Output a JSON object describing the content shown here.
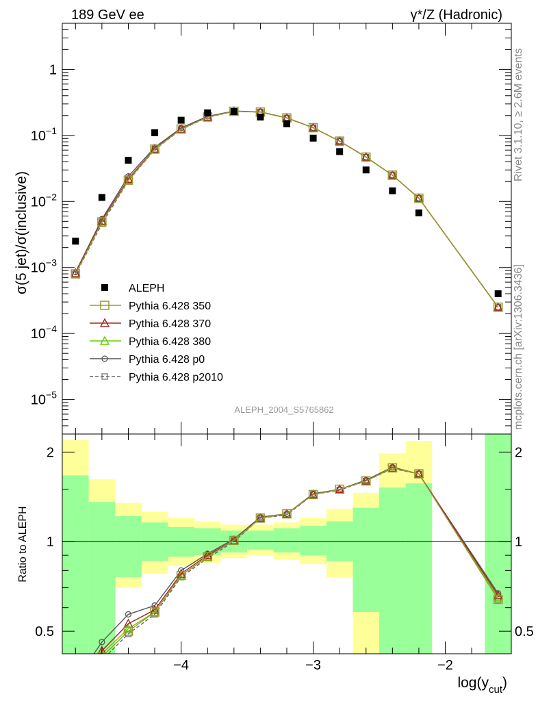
{
  "header": {
    "left": "189 GeV ee",
    "right": "γ*/Z (Hadronic)"
  },
  "side_labels": {
    "rivet": "Rivet 3.1.10, ≥ 2.6M events",
    "mcplots": "mcplots.cern.ch [arXiv:1306.3436]"
  },
  "analysis_id": "ALEPH_2004_S5765862",
  "main_ylabel": "σ(5 jet)/σ(inclusive)",
  "ratio_ylabel": "Ratio to ALEPH",
  "xlabel_base": "log(y",
  "xlabel_sub": "cut",
  "xlabel_close": ")",
  "colors": {
    "aleph": "#000000",
    "p350": "#999933",
    "p370": "#aa2222",
    "p380": "#66cc00",
    "p0": "#555555",
    "p2010": "#666666",
    "band_inner": "#99ff99",
    "band_outer": "#ffff99"
  },
  "chart_data": [
    {
      "type": "scatter",
      "scale": "log",
      "xlim": [
        -4.9,
        -1.5
      ],
      "ylim": [
        3e-06,
        5
      ],
      "y_ticks": [
        "10^-5",
        "10^-4",
        "10^-3",
        "10^-2",
        "10^-1",
        "1"
      ],
      "legend": "middle-left",
      "series": [
        {
          "name": "ALEPH",
          "x": [
            -4.8,
            -4.6,
            -4.4,
            -4.2,
            -4.0,
            -3.8,
            -3.6,
            -3.4,
            -3.2,
            -3.0,
            -2.8,
            -2.6,
            -2.4,
            -2.2,
            -1.6
          ],
          "values": [
            0.0025,
            0.0115,
            0.042,
            0.11,
            0.17,
            0.22,
            0.23,
            0.19,
            0.15,
            0.091,
            0.057,
            0.03,
            0.0145,
            0.0067,
            0.0004
          ]
        },
        {
          "name": "Pythia 6.428 350",
          "x": [
            -4.8,
            -4.6,
            -4.4,
            -4.2,
            -4.0,
            -3.8,
            -3.6,
            -3.4,
            -3.2,
            -3.0,
            -2.8,
            -2.6,
            -2.4,
            -2.2,
            -1.6
          ],
          "values": [
            0.0008,
            0.0049,
            0.021,
            0.062,
            0.125,
            0.19,
            0.232,
            0.226,
            0.184,
            0.131,
            0.082,
            0.047,
            0.025,
            0.0112,
            0.00025
          ]
        },
        {
          "name": "Pythia 6.428 370",
          "x": [
            -4.8,
            -4.6,
            -4.4,
            -4.2,
            -4.0,
            -3.8,
            -3.6,
            -3.4,
            -3.2,
            -3.0,
            -2.8,
            -2.6,
            -2.4,
            -2.2,
            -1.6
          ],
          "values": [
            0.00082,
            0.0051,
            0.022,
            0.063,
            0.126,
            0.191,
            0.232,
            0.226,
            0.184,
            0.131,
            0.082,
            0.047,
            0.025,
            0.0112,
            0.00025
          ]
        },
        {
          "name": "Pythia 6.428 380",
          "x": [
            -4.8,
            -4.6,
            -4.4,
            -4.2,
            -4.0,
            -3.8,
            -3.6,
            -3.4,
            -3.2,
            -3.0,
            -2.8,
            -2.6,
            -2.4,
            -2.2,
            -1.6
          ],
          "values": [
            0.00081,
            0.005,
            0.0215,
            0.0625,
            0.125,
            0.19,
            0.232,
            0.226,
            0.184,
            0.131,
            0.082,
            0.047,
            0.025,
            0.0112,
            0.00025
          ]
        },
        {
          "name": "Pythia 6.428 p0",
          "x": [
            -4.8,
            -4.6,
            -4.4,
            -4.2,
            -4.0,
            -3.8,
            -3.6,
            -3.4,
            -3.2,
            -3.0,
            -2.8,
            -2.6,
            -2.4,
            -2.2,
            -1.6
          ],
          "values": [
            0.00085,
            0.0054,
            0.024,
            0.066,
            0.13,
            0.195,
            0.234,
            0.227,
            0.185,
            0.131,
            0.082,
            0.047,
            0.025,
            0.0112,
            0.00025
          ]
        },
        {
          "name": "Pythia 6.428 p2010",
          "x": [
            -4.8,
            -4.6,
            -4.4,
            -4.2,
            -4.0,
            -3.8,
            -3.6,
            -3.4,
            -3.2,
            -3.0,
            -2.8,
            -2.6,
            -2.4,
            -2.2,
            -1.6
          ],
          "values": [
            0.00078,
            0.0046,
            0.0205,
            0.061,
            0.123,
            0.188,
            0.231,
            0.226,
            0.184,
            0.131,
            0.082,
            0.047,
            0.025,
            0.0112,
            0.00025
          ]
        }
      ]
    },
    {
      "type": "line",
      "xlim": [
        -4.9,
        -1.5
      ],
      "ylim": [
        0.42,
        2.3
      ],
      "y_ticks": [
        "0.5",
        "1",
        "2"
      ],
      "x_ticks": [
        "−4",
        "−3",
        "−2"
      ],
      "bands": {
        "x_edges": [
          -4.9,
          -4.7,
          -4.5,
          -4.3,
          -4.1,
          -3.9,
          -3.7,
          -3.5,
          -3.3,
          -3.1,
          -2.9,
          -2.7,
          -2.5,
          -2.3,
          -2.1,
          -1.7,
          -1.5
        ],
        "inner_low": [
          0.42,
          0.42,
          0.76,
          0.86,
          0.89,
          0.9,
          0.92,
          0.94,
          0.92,
          0.9,
          0.86,
          0.58,
          0.42,
          0.42,
          null,
          0.42
        ],
        "inner_high": [
          1.67,
          1.36,
          1.22,
          1.16,
          1.12,
          1.11,
          1.09,
          1.09,
          1.11,
          1.13,
          1.17,
          1.3,
          1.52,
          1.57,
          null,
          2.3
        ],
        "outer_low": [
          0.42,
          0.42,
          0.7,
          0.78,
          0.83,
          0.85,
          0.88,
          0.9,
          0.87,
          0.84,
          0.76,
          0.42,
          0.42,
          0.42,
          null,
          0.42
        ],
        "outer_high": [
          2.2,
          1.62,
          1.35,
          1.26,
          1.2,
          1.17,
          1.14,
          1.14,
          1.16,
          1.2,
          1.29,
          1.46,
          1.98,
          2.18,
          null,
          2.3
        ]
      },
      "series": [
        {
          "name": "Pythia 6.428 350",
          "x": [
            -4.8,
            -4.6,
            -4.4,
            -4.2,
            -4.0,
            -3.8,
            -3.6,
            -3.4,
            -3.2,
            -3.0,
            -2.8,
            -2.6,
            -2.4,
            -2.2,
            -1.6
          ],
          "values": [
            0.3,
            0.41,
            0.5,
            0.58,
            0.77,
            0.89,
            1.01,
            1.2,
            1.24,
            1.44,
            1.5,
            1.6,
            1.77,
            1.69,
            0.64
          ]
        },
        {
          "name": "Pythia 6.428 370",
          "x": [
            -4.8,
            -4.6,
            -4.4,
            -4.2,
            -4.0,
            -3.8,
            -3.6,
            -3.4,
            -3.2,
            -3.0,
            -2.8,
            -2.6,
            -2.4,
            -2.2,
            -1.6
          ],
          "values": [
            0.32,
            0.43,
            0.53,
            0.59,
            0.78,
            0.9,
            1.01,
            1.2,
            1.24,
            1.44,
            1.5,
            1.6,
            1.77,
            1.69,
            0.66
          ]
        },
        {
          "name": "Pythia 6.428 380",
          "x": [
            -4.8,
            -4.6,
            -4.4,
            -4.2,
            -4.0,
            -3.8,
            -3.6,
            -3.4,
            -3.2,
            -3.0,
            -2.8,
            -2.6,
            -2.4,
            -2.2,
            -1.6
          ],
          "values": [
            0.31,
            0.42,
            0.51,
            0.58,
            0.77,
            0.89,
            1.01,
            1.2,
            1.24,
            1.44,
            1.5,
            1.6,
            1.77,
            1.69,
            0.65
          ]
        },
        {
          "name": "Pythia 6.428 p0",
          "x": [
            -4.8,
            -4.6,
            -4.4,
            -4.2,
            -4.0,
            -3.8,
            -3.6,
            -3.4,
            -3.2,
            -3.0,
            -2.8,
            -2.6,
            -2.4,
            -2.2,
            -1.6
          ],
          "values": [
            0.34,
            0.46,
            0.57,
            0.61,
            0.8,
            0.91,
            1.02,
            1.21,
            1.24,
            1.45,
            1.5,
            1.61,
            1.78,
            1.69,
            0.67
          ]
        },
        {
          "name": "Pythia 6.428 p2010",
          "x": [
            -4.8,
            -4.6,
            -4.4,
            -4.2,
            -4.0,
            -3.8,
            -3.6,
            -3.4,
            -3.2,
            -3.0,
            -2.8,
            -2.6,
            -2.4,
            -2.2,
            -1.6
          ],
          "values": [
            0.3,
            0.4,
            0.49,
            0.57,
            0.76,
            0.88,
            1.0,
            1.2,
            1.23,
            1.44,
            1.49,
            1.6,
            1.76,
            1.69,
            0.64
          ]
        }
      ]
    }
  ]
}
